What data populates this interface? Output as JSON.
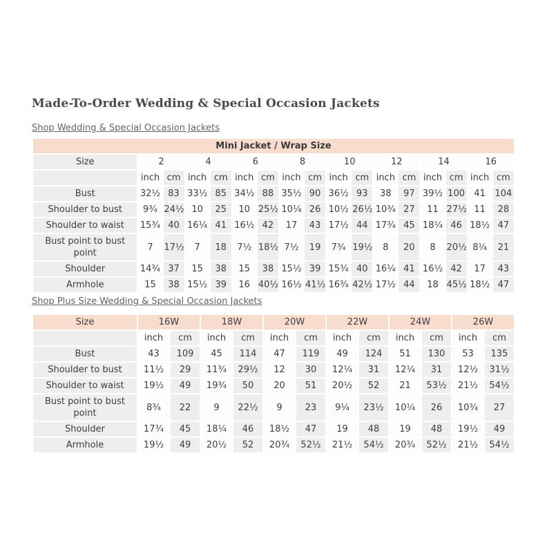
{
  "page": {
    "title": "Made-To-Order Wedding & Special Occasion Jackets",
    "shop_link": "Shop Wedding & Special Occasion Jackets",
    "shop_plus_link": "Shop Plus Size Wedding & Special Occasion Jackets"
  },
  "colors": {
    "header_pink": "#f8dccd",
    "cell_gray": "#eeeeee",
    "text": "#3d3d3d",
    "link": "#636363",
    "title": "#4c4a45"
  },
  "mini_table": {
    "title": "Mini Jacket / Wrap Size",
    "size_label": "Size",
    "sizes": [
      "2",
      "4",
      "6",
      "8",
      "10",
      "12",
      "14",
      "16"
    ],
    "unit_inch": "inch",
    "unit_cm": "cm",
    "rows": [
      {
        "label": "Bust",
        "values": [
          "32½",
          "83",
          "33½",
          "85",
          "34½",
          "88",
          "35½",
          "90",
          "36½",
          "93",
          "38",
          "97",
          "39½",
          "100",
          "41",
          "104"
        ]
      },
      {
        "label": "Shoulder to bust",
        "values": [
          "9¾",
          "24½",
          "10",
          "25",
          "10",
          "25½",
          "10¼",
          "26",
          "10½",
          "26½",
          "10¾",
          "27",
          "11",
          "27½",
          "11",
          "28"
        ]
      },
      {
        "label": "Shoulder to waist",
        "values": [
          "15¾",
          "40",
          "16¼",
          "41",
          "16½",
          "42",
          "17",
          "43",
          "17½",
          "44",
          "17¾",
          "45",
          "18¼",
          "46",
          "18½",
          "47"
        ]
      },
      {
        "label": "Bust point to bust point",
        "values": [
          "7",
          "17½",
          "7",
          "18",
          "7½",
          "18½",
          "7½",
          "19",
          "7¾",
          "19½",
          "8",
          "20",
          "8",
          "20½",
          "8¼",
          "21"
        ]
      },
      {
        "label": "Shoulder",
        "values": [
          "14¾",
          "37",
          "15",
          "38",
          "15",
          "38",
          "15½",
          "39",
          "15¾",
          "40",
          "16¼",
          "41",
          "16½",
          "42",
          "17",
          "43"
        ]
      },
      {
        "label": "Armhole",
        "values": [
          "15",
          "38",
          "15½",
          "39",
          "16",
          "40½",
          "16½",
          "41½",
          "16¾",
          "42½",
          "17½",
          "44",
          "18",
          "45½",
          "18½",
          "47"
        ]
      }
    ]
  },
  "plus_table": {
    "size_label": "Size",
    "sizes": [
      "16W",
      "18W",
      "20W",
      "22W",
      "24W",
      "26W"
    ],
    "unit_inch": "inch",
    "unit_cm": "cm",
    "rows": [
      {
        "label": "Bust",
        "values": [
          "43",
          "109",
          "45",
          "114",
          "47",
          "119",
          "49",
          "124",
          "51",
          "130",
          "53",
          "135"
        ]
      },
      {
        "label": "Shoulder to bust",
        "values": [
          "11½",
          "29",
          "11¾",
          "29½",
          "12",
          "30",
          "12¼",
          "31",
          "12¼",
          "31",
          "12½",
          "31½"
        ]
      },
      {
        "label": "Shoulder to waist",
        "values": [
          "19½",
          "49",
          "19¾",
          "50",
          "20",
          "51",
          "20½",
          "52",
          "21",
          "53½",
          "21½",
          "54½"
        ]
      },
      {
        "label": "Bust point to bust point",
        "values": [
          "8¾",
          "22",
          "9",
          "22½",
          "9",
          "23",
          "9¼",
          "23½",
          "10¼",
          "26",
          "10¾",
          "27"
        ]
      },
      {
        "label": "Shoulder",
        "values": [
          "17¾",
          "45",
          "18¼",
          "46",
          "18½",
          "47",
          "19",
          "48",
          "19",
          "48",
          "19½",
          "49"
        ]
      },
      {
        "label": "Armhole",
        "values": [
          "19½",
          "49",
          "20½",
          "52",
          "20¾",
          "52½",
          "21½",
          "54½",
          "20¾",
          "52½",
          "21½",
          "54½"
        ]
      }
    ]
  }
}
